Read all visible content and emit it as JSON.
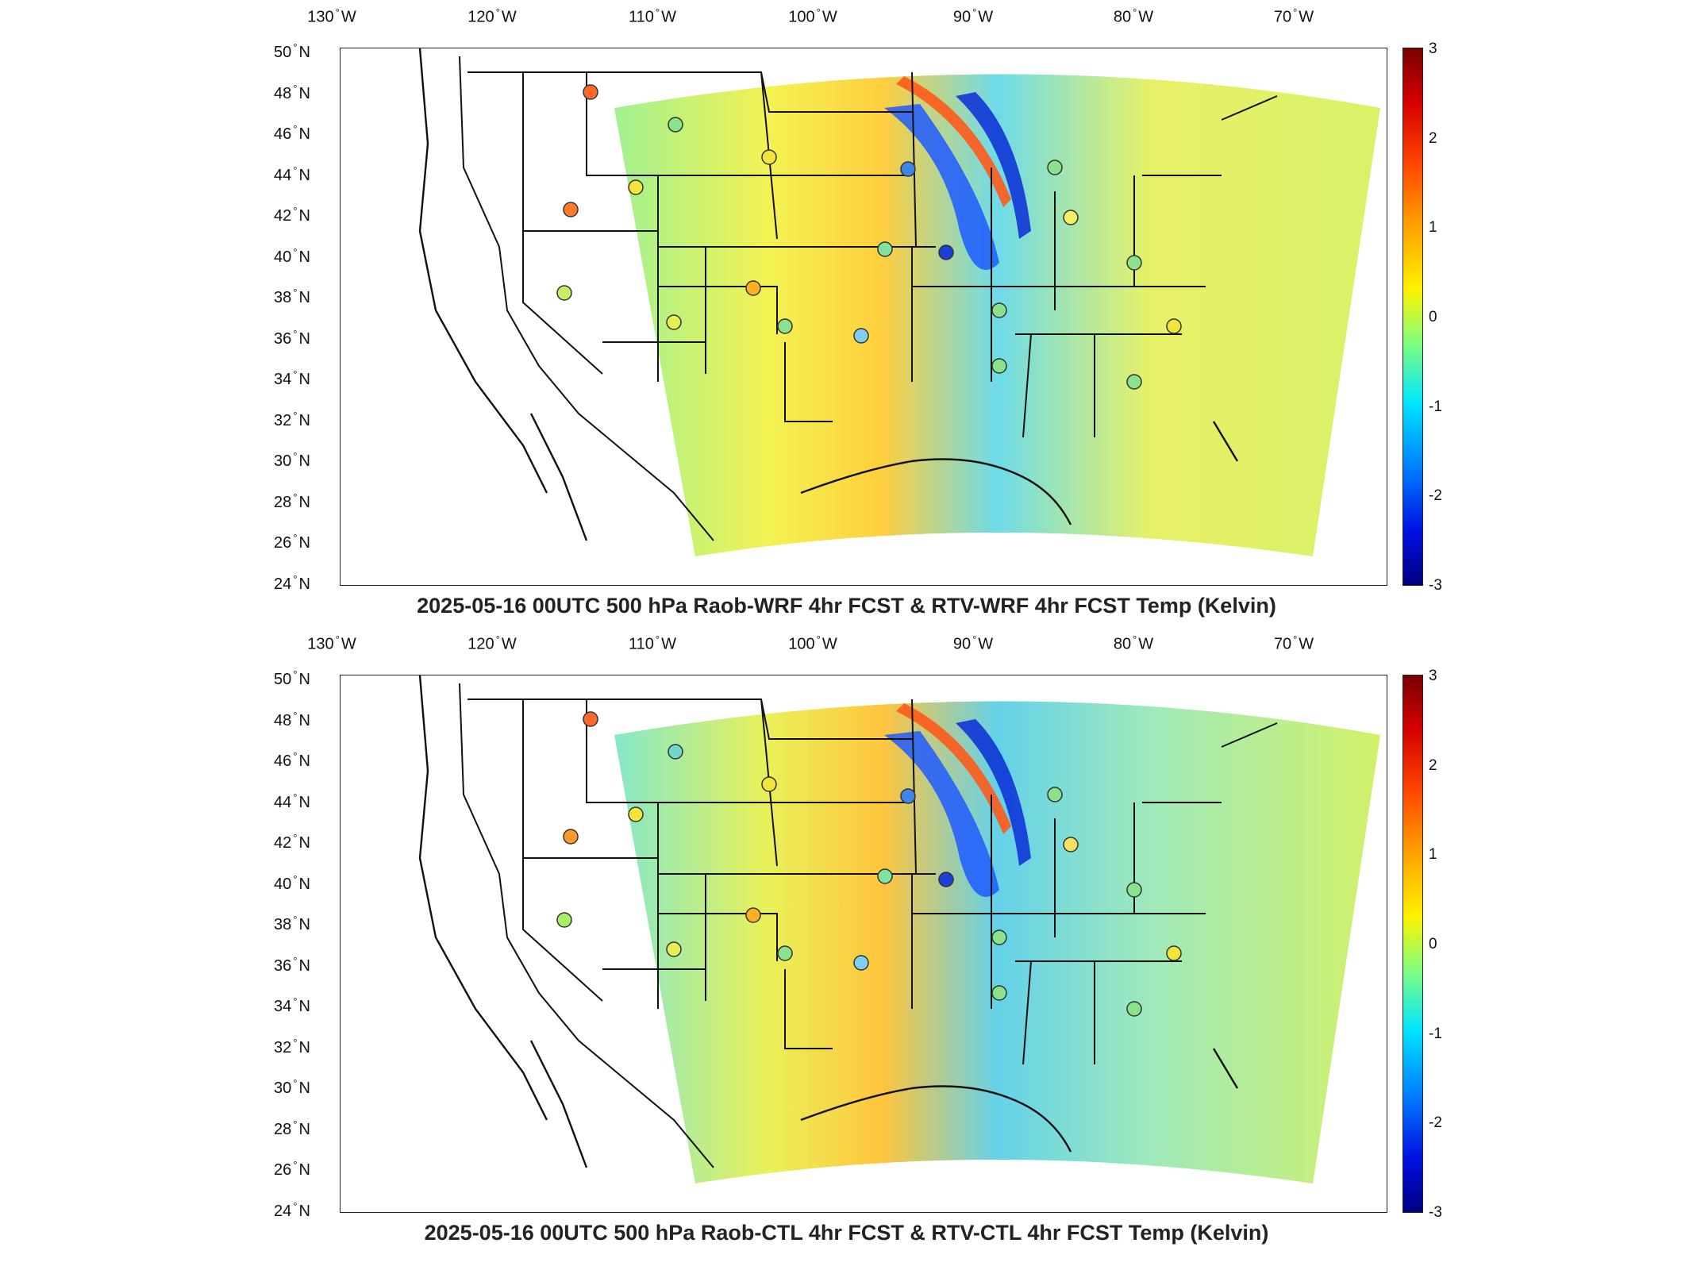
{
  "panels": [
    {
      "title": "2025-05-16 00UTC 500 hPa Raob-WRF 4hr FCST & RTV-WRF 4hr FCST Temp (Kelvin)"
    },
    {
      "title": "2025-05-16 00UTC 500 hPa Raob-CTL 4hr FCST & RTV-CTL 4hr FCST Temp (Kelvin)"
    }
  ],
  "axes": {
    "longitude_labels": [
      {
        "value": "130",
        "dir": "W"
      },
      {
        "value": "120",
        "dir": "W"
      },
      {
        "value": "110",
        "dir": "W"
      },
      {
        "value": "100",
        "dir": "W"
      },
      {
        "value": "90",
        "dir": "W"
      },
      {
        "value": "80",
        "dir": "W"
      },
      {
        "value": "70",
        "dir": "W"
      }
    ],
    "latitude_labels": [
      {
        "value": "50",
        "dir": "N"
      },
      {
        "value": "48",
        "dir": "N"
      },
      {
        "value": "46",
        "dir": "N"
      },
      {
        "value": "44",
        "dir": "N"
      },
      {
        "value": "42",
        "dir": "N"
      },
      {
        "value": "40",
        "dir": "N"
      },
      {
        "value": "38",
        "dir": "N"
      },
      {
        "value": "36",
        "dir": "N"
      },
      {
        "value": "34",
        "dir": "N"
      },
      {
        "value": "32",
        "dir": "N"
      },
      {
        "value": "30",
        "dir": "N"
      },
      {
        "value": "28",
        "dir": "N"
      },
      {
        "value": "26",
        "dir": "N"
      },
      {
        "value": "24",
        "dir": "N"
      }
    ],
    "degree_symbol": "°"
  },
  "colorbar": {
    "ticks": [
      "3",
      "2",
      "1",
      "0",
      "-1",
      "-2",
      "-3"
    ],
    "range": [
      -3,
      3
    ],
    "colormap": "jet"
  }
}
